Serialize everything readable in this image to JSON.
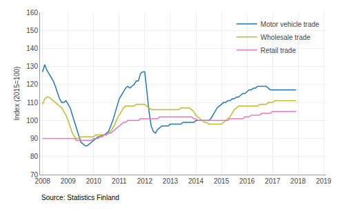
{
  "chart_data": {
    "type": "line",
    "ylabel": "Index (2015=100)",
    "annotations": [
      "Source: Statistics Finland"
    ],
    "xlim": [
      2007.9,
      2019.1
    ],
    "ylim": [
      70,
      160
    ],
    "xticks": [
      2008,
      2009,
      2010,
      2011,
      2012,
      2013,
      2014,
      2015,
      2016,
      2017,
      2018,
      2019
    ],
    "yticks": [
      70,
      80,
      90,
      100,
      110,
      120,
      130,
      140,
      150,
      160
    ],
    "grid": true,
    "legend": "upper right",
    "x": [
      2008,
      2008.0833333333333,
      2008.1666666666667,
      2008.25,
      2008.3333333333333,
      2008.4166666666667,
      2008.5,
      2008.5833333333333,
      2008.6666666666667,
      2008.75,
      2008.8333333333333,
      2008.9166666666667,
      2009,
      2009.0833333333333,
      2009.1666666666667,
      2009.25,
      2009.3333333333333,
      2009.4166666666667,
      2009.5,
      2009.5833333333333,
      2009.6666666666667,
      2009.75,
      2009.8333333333333,
      2009.9166666666667,
      2010,
      2010.0833333333333,
      2010.1666666666667,
      2010.25,
      2010.3333333333333,
      2010.4166666666667,
      2010.5,
      2010.5833333333333,
      2010.6666666666667,
      2010.75,
      2010.8333333333333,
      2010.9166666666667,
      2011,
      2011.0833333333333,
      2011.1666666666667,
      2011.25,
      2011.3333333333333,
      2011.4166666666667,
      2011.5,
      2011.5833333333333,
      2011.6666666666667,
      2011.75,
      2011.8333333333333,
      2011.9166666666667,
      2012,
      2012.0833333333333,
      2012.1666666666667,
      2012.25,
      2012.3333333333333,
      2012.4166666666667,
      2012.5,
      2012.5833333333333,
      2012.6666666666667,
      2012.75,
      2012.8333333333333,
      2012.9166666666667,
      2013,
      2013.0833333333333,
      2013.1666666666667,
      2013.25,
      2013.3333333333333,
      2013.4166666666667,
      2013.5,
      2013.5833333333333,
      2013.6666666666667,
      2013.75,
      2013.8333333333333,
      2013.9166666666667,
      2014,
      2014.0833333333333,
      2014.1666666666667,
      2014.25,
      2014.3333333333333,
      2014.4166666666667,
      2014.5,
      2014.5833333333333,
      2014.6666666666667,
      2014.75,
      2014.8333333333333,
      2014.9166666666667,
      2015,
      2015.0833333333333,
      2015.1666666666667,
      2015.25,
      2015.3333333333333,
      2015.4166666666667,
      2015.5,
      2015.5833333333333,
      2015.6666666666667,
      2015.75,
      2015.8333333333333,
      2015.9166666666667,
      2016,
      2016.0833333333333,
      2016.1666666666667,
      2016.25,
      2016.3333333333333,
      2016.4166666666667,
      2016.5,
      2016.5833333333333,
      2016.6666666666667,
      2016.75,
      2016.8333333333333,
      2016.9166666666667,
      2017,
      2017.0833333333333,
      2017.1666666666667,
      2017.25,
      2017.3333333333333,
      2017.4166666666667,
      2017.5,
      2017.5833333333333,
      2017.6666666666667,
      2017.75,
      2017.8333333333333,
      2017.9166666666667
    ],
    "series": [
      {
        "name": "Motor vehicle trade",
        "color": "#1f77b4",
        "values": [
          127,
          131,
          128,
          126,
          124,
          122,
          119,
          115,
          112,
          110,
          110,
          111,
          109,
          107,
          103,
          99,
          95,
          91,
          88,
          87,
          86,
          86,
          87,
          88,
          89,
          90,
          91,
          91,
          92,
          92,
          93,
          94,
          97,
          100,
          104,
          108,
          112,
          114,
          116,
          118,
          119,
          118,
          119,
          120,
          122,
          122,
          126,
          127,
          127,
          115,
          105,
          97,
          94,
          93,
          95,
          96,
          97,
          97,
          97,
          97,
          98,
          98,
          98,
          98,
          98,
          98,
          99,
          99,
          99,
          99,
          99,
          99,
          100,
          100,
          100,
          100,
          100,
          100,
          100,
          101,
          103,
          105,
          107,
          108,
          109,
          110,
          110,
          111,
          111,
          112,
          112,
          113,
          113,
          114,
          115,
          115,
          116,
          117,
          117,
          118,
          118,
          119,
          119,
          119,
          119,
          119,
          118,
          117,
          117,
          117,
          117,
          117,
          117,
          117,
          117,
          117,
          117,
          117,
          117,
          117
        ]
      },
      {
        "name": "Wholesale trade",
        "color": "#bcbd22",
        "values": [
          109,
          112,
          113,
          113,
          112,
          111,
          110,
          109,
          108,
          107,
          105,
          103,
          100,
          96,
          93,
          91,
          90,
          90,
          91,
          91,
          91,
          91,
          91,
          91,
          91,
          92,
          92,
          92,
          92,
          92,
          92,
          93,
          94,
          96,
          98,
          101,
          103,
          105,
          107,
          108,
          108,
          108,
          108,
          108,
          109,
          109,
          109,
          109,
          109,
          108,
          107,
          106,
          106,
          106,
          106,
          106,
          106,
          106,
          106,
          106,
          106,
          106,
          106,
          106,
          106,
          107,
          107,
          107,
          107,
          107,
          106,
          105,
          103,
          102,
          101,
          100,
          99,
          99,
          98,
          98,
          98,
          98,
          98,
          98,
          98,
          99,
          100,
          101,
          102,
          104,
          106,
          107,
          108,
          108,
          108,
          108,
          108,
          108,
          108,
          108,
          108,
          108,
          109,
          109,
          109,
          109,
          110,
          110,
          110,
          111,
          111,
          111,
          111,
          111,
          111,
          111,
          111,
          111,
          111,
          111
        ]
      },
      {
        "name": "Retail trade",
        "color": "#e377c2",
        "values": [
          90,
          90,
          90,
          90,
          90,
          90,
          90,
          90,
          90,
          90,
          90,
          90,
          90,
          90,
          90,
          90,
          89,
          89,
          89,
          89,
          89,
          89,
          89,
          89,
          90,
          90,
          90,
          91,
          91,
          92,
          92,
          93,
          93,
          94,
          95,
          96,
          97,
          98,
          99,
          99,
          100,
          100,
          100,
          100,
          100,
          100,
          101,
          101,
          101,
          101,
          101,
          101,
          101,
          101,
          101,
          102,
          102,
          102,
          102,
          102,
          102,
          102,
          102,
          102,
          102,
          102,
          102,
          102,
          102,
          102,
          102,
          101,
          101,
          100,
          100,
          100,
          100,
          100,
          100,
          100,
          100,
          100,
          100,
          100,
          100,
          100,
          100,
          100,
          101,
          101,
          101,
          101,
          101,
          101,
          101,
          102,
          102,
          102,
          103,
          103,
          103,
          103,
          103,
          104,
          104,
          104,
          104,
          104,
          105,
          105,
          105,
          105,
          105,
          105,
          105,
          105,
          105,
          105,
          105,
          105
        ]
      }
    ]
  }
}
